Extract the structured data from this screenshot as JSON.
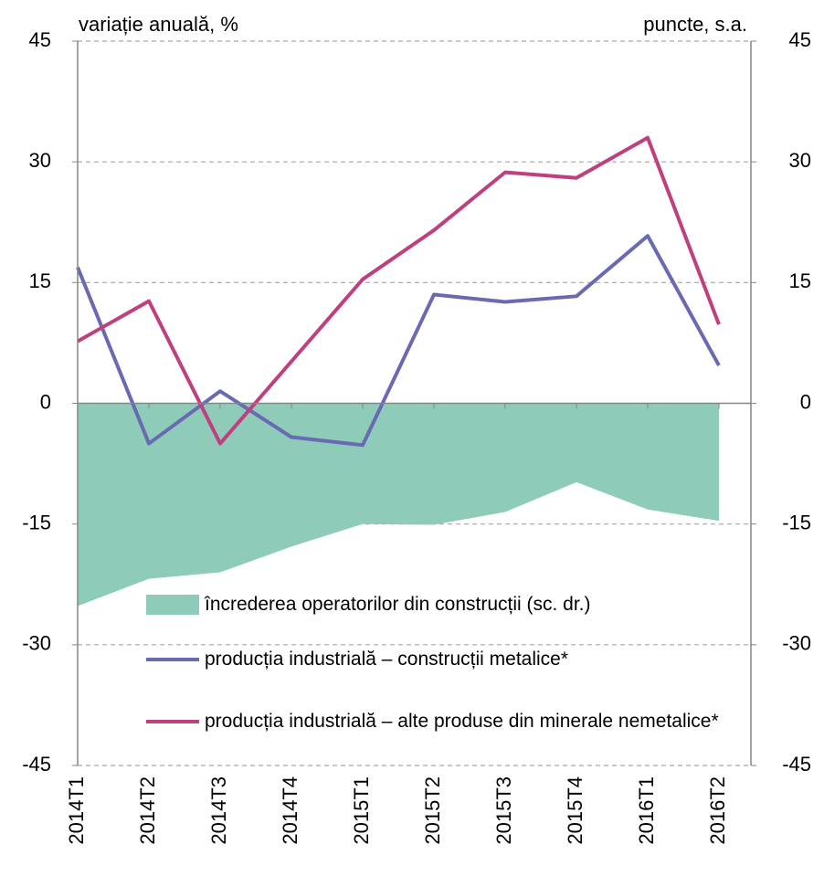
{
  "chart_data": {
    "type": "line",
    "y_label": "variație anuală, %",
    "y2_label": "puncte, s.a.",
    "categories": [
      "2014T1",
      "2014T2",
      "2014T3",
      "2014T4",
      "2015T1",
      "2015T2",
      "2015T3",
      "2015T4",
      "2016T1",
      "2016T2"
    ],
    "series": [
      {
        "name": "încrederea operatorilor din construcții (sc. dr.)",
        "color": "#8ecbb9",
        "kind": "area",
        "axis": "y2",
        "values": [
          -25.2,
          -21.8,
          -21.0,
          -17.8,
          -15.0,
          -15.1,
          -13.5,
          -9.8,
          -13.2,
          -14.6
        ]
      },
      {
        "name": "producția industrială – construcții metalice*",
        "color": "#6a6ab3",
        "kind": "line",
        "values": [
          16.9,
          -5.0,
          1.5,
          -4.2,
          -5.2,
          13.5,
          12.6,
          13.3,
          20.8,
          4.7
        ]
      },
      {
        "name": "producția industrială – alte produse din minerale nemetalice*",
        "color": "#c0407f",
        "kind": "line",
        "values": [
          7.7,
          12.7,
          -5.0,
          5.2,
          15.4,
          21.5,
          28.7,
          28.0,
          33.0,
          9.8
        ]
      }
    ],
    "ylim": [
      -45,
      45
    ],
    "yticks": [
      -45,
      -30,
      -15,
      0,
      15,
      30,
      45
    ],
    "y2lim": [
      -45,
      45
    ],
    "y2ticks": [
      -45,
      -30,
      -15,
      0,
      15,
      30,
      45
    ],
    "grid": true
  }
}
